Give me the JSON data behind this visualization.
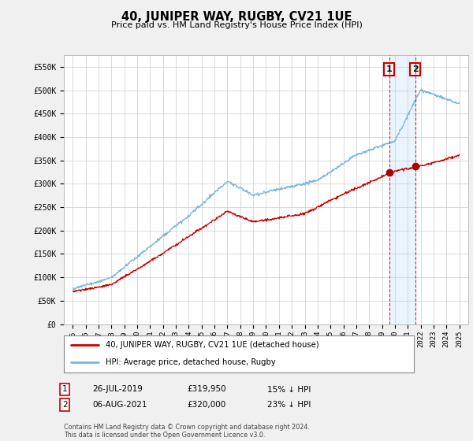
{
  "title": "40, JUNIPER WAY, RUGBY, CV21 1UE",
  "subtitle": "Price paid vs. HM Land Registry's House Price Index (HPI)",
  "hpi_color": "#7ab8d9",
  "price_color": "#cc0000",
  "background_color": "#f0f0f0",
  "plot_bg_color": "#ffffff",
  "grid_color": "#cccccc",
  "ylim": [
    0,
    575000
  ],
  "yticks": [
    0,
    50000,
    100000,
    150000,
    200000,
    250000,
    300000,
    350000,
    400000,
    450000,
    500000,
    550000
  ],
  "ytick_labels": [
    "£0",
    "£50K",
    "£100K",
    "£150K",
    "£200K",
    "£250K",
    "£300K",
    "£350K",
    "£400K",
    "£450K",
    "£500K",
    "£550K"
  ],
  "sale1_year": 2019.55,
  "sale1_price": 319950,
  "sale2_year": 2021.58,
  "sale2_price": 320000,
  "legend_line1": "40, JUNIPER WAY, RUGBY, CV21 1UE (detached house)",
  "legend_line2": "HPI: Average price, detached house, Rugby",
  "table_row1": [
    "1",
    "26-JUL-2019",
    "£319,950",
    "15% ↓ HPI"
  ],
  "table_row2": [
    "2",
    "06-AUG-2021",
    "£320,000",
    "23% ↓ HPI"
  ],
  "footnote": "Contains HM Land Registry data © Crown copyright and database right 2024.\nThis data is licensed under the Open Government Licence v3.0.",
  "shade_color": "#ddeeff"
}
